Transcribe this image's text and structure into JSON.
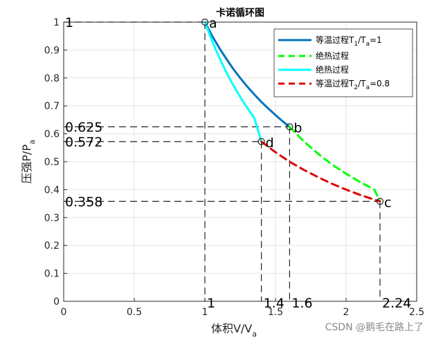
{
  "chart_data": {
    "type": "line",
    "title": "卡诺循环图",
    "xlabel": "体积V/V",
    "xlabel_sub": "a",
    "ylabel": "压强P/P",
    "ylabel_sub": "a",
    "xlim": [
      0,
      2.5
    ],
    "ylim": [
      0,
      1
    ],
    "xticks": [
      "0",
      "0.5",
      "1",
      "1.5",
      "2",
      "2.5"
    ],
    "yticks": [
      "0",
      "0.1",
      "0.2",
      "0.3",
      "0.4",
      "0.5",
      "0.6",
      "0.7",
      "0.8",
      "0.9",
      "1"
    ],
    "grid": true,
    "legend_position": "top-right",
    "series": [
      {
        "name_parts": [
          "等温过程T",
          "1",
          "/T",
          "a",
          "=1"
        ],
        "color": "#0072BD",
        "style": "solid",
        "x": [
          1.0,
          1.05,
          1.1,
          1.15,
          1.2,
          1.25,
          1.3,
          1.35,
          1.4,
          1.45,
          1.5,
          1.55,
          1.6
        ],
        "y": [
          1.0,
          0.952,
          0.909,
          0.87,
          0.833,
          0.8,
          0.769,
          0.741,
          0.714,
          0.69,
          0.667,
          0.645,
          0.625
        ]
      },
      {
        "name": "绝热过程",
        "color": "#00FF00",
        "style": "dashed",
        "x": [
          1.6,
          1.7,
          1.8,
          1.9,
          2.0,
          2.1,
          2.2,
          2.24
        ],
        "y": [
          0.625,
          0.573,
          0.529,
          0.49,
          0.457,
          0.427,
          0.4,
          0.358
        ]
      },
      {
        "name": "绝热过程",
        "color": "#00FFFF",
        "style": "solid",
        "x": [
          1.0,
          1.05,
          1.1,
          1.15,
          1.2,
          1.25,
          1.3,
          1.35,
          1.4
        ],
        "y": [
          1.0,
          0.934,
          0.875,
          0.822,
          0.775,
          0.732,
          0.693,
          0.657,
          0.572
        ]
      },
      {
        "name_parts": [
          "等温过程T",
          "2",
          "/T",
          "a",
          "=0.8"
        ],
        "color": "#DD0000",
        "style": "dashed",
        "x": [
          1.4,
          1.5,
          1.6,
          1.7,
          1.8,
          1.9,
          2.0,
          2.1,
          2.2,
          2.24
        ],
        "y": [
          0.572,
          0.534,
          0.5,
          0.471,
          0.445,
          0.421,
          0.4,
          0.381,
          0.364,
          0.358
        ]
      }
    ],
    "points": [
      {
        "label": "a",
        "x": 1.0,
        "y": 1.0
      },
      {
        "label": "b",
        "x": 1.6,
        "y": 0.625
      },
      {
        "label": "c",
        "x": 2.24,
        "y": 0.358
      },
      {
        "label": "d",
        "x": 1.4,
        "y": 0.572
      }
    ],
    "reference_y_labels": [
      "1",
      "0.625",
      "0.572",
      "0.358"
    ],
    "reference_y_values": [
      1,
      0.625,
      0.572,
      0.358
    ],
    "reference_x_labels": [
      "1",
      "1.4",
      "1.6",
      "2.24"
    ],
    "reference_x_values": [
      1,
      1.4,
      1.6,
      2.24
    ]
  },
  "watermark": "CSDN @鹅毛在路上了"
}
